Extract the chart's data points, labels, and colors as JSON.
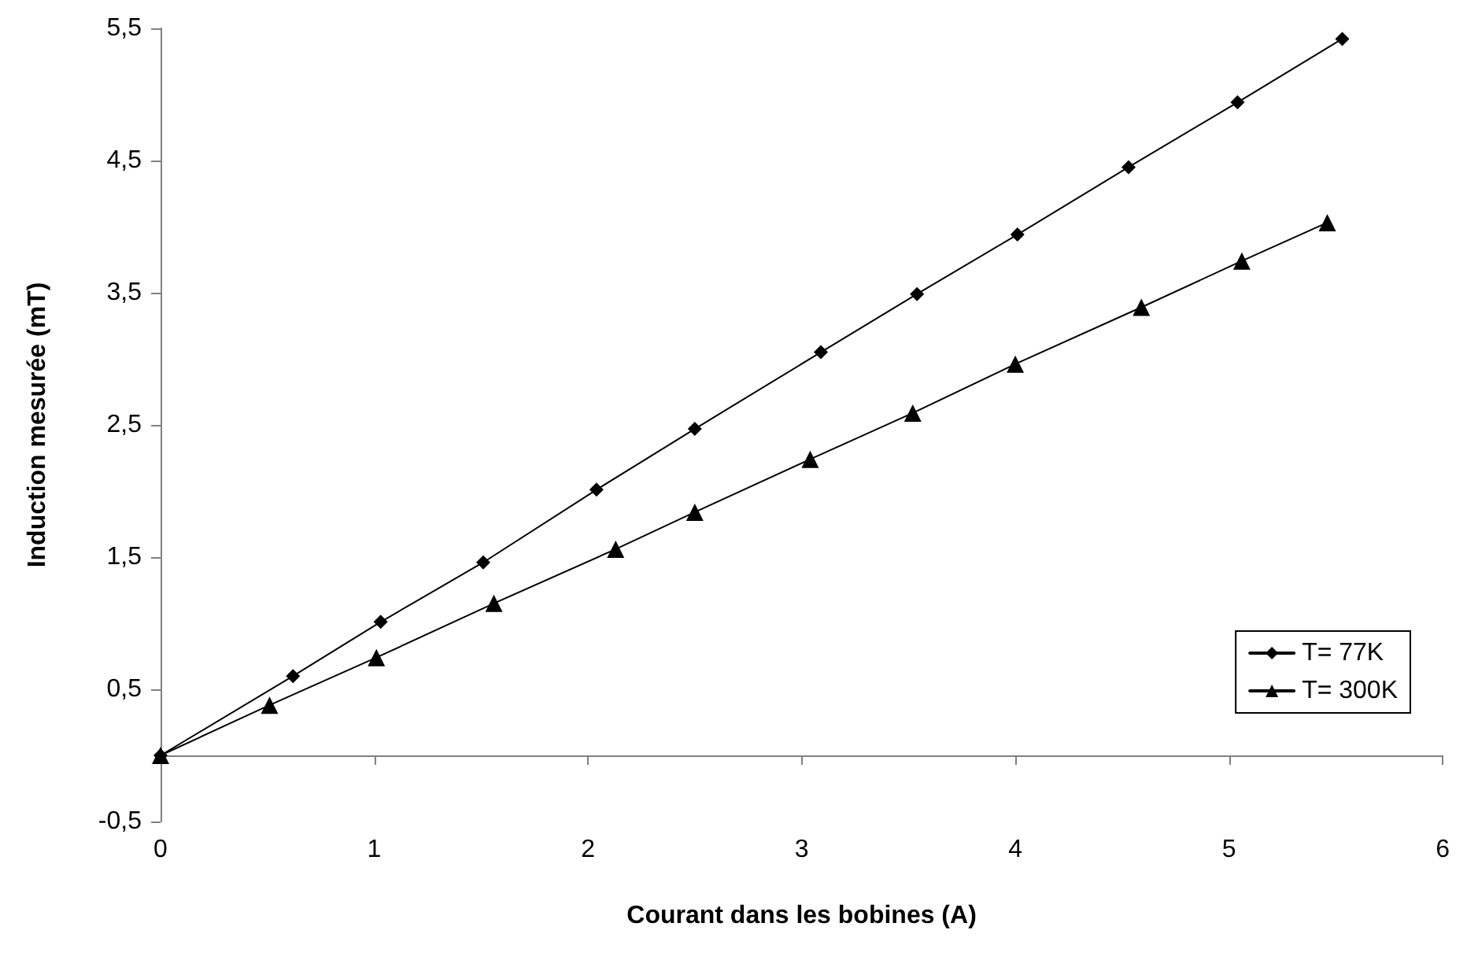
{
  "chart_data": {
    "type": "line",
    "xlabel": "Courant dans les bobines (A)",
    "ylabel": "Induction mesurée (mT)",
    "xlim": [
      0,
      6
    ],
    "xticks": [
      0,
      1,
      2,
      3,
      4,
      5,
      6
    ],
    "ylim": [
      -0.5,
      5.5
    ],
    "yticks": [
      {
        "value": -0.5,
        "label": "-0,5"
      },
      {
        "value": 0.5,
        "label": "0,5"
      },
      {
        "value": 1.5,
        "label": "1,5"
      },
      {
        "value": 2.5,
        "label": "2,5"
      },
      {
        "value": 3.5,
        "label": "3,5"
      },
      {
        "value": 4.5,
        "label": "4,5"
      },
      {
        "value": 5.5,
        "label": "5,5"
      }
    ],
    "grid": false,
    "legend": "right",
    "line_style": "solid",
    "series": [
      {
        "name": "T= 77K",
        "color": "#000000",
        "marker": "diamond",
        "x": [
          0,
          0.62,
          1.03,
          1.51,
          2.04,
          2.5,
          3.09,
          3.54,
          4.01,
          4.53,
          5.04,
          5.53
        ],
        "values": [
          0,
          0.6,
          1.01,
          1.46,
          2.01,
          2.47,
          3.05,
          3.49,
          3.94,
          4.45,
          4.94,
          5.42
        ]
      },
      {
        "name": "T= 300K",
        "color": "#000000",
        "marker": "triangle",
        "x": [
          0,
          0.51,
          1.01,
          1.56,
          2.13,
          2.5,
          3.04,
          3.52,
          4,
          4.59,
          5.06,
          5.46
        ],
        "values": [
          0,
          0.38,
          0.74,
          1.15,
          1.56,
          1.84,
          2.24,
          2.59,
          2.96,
          3.39,
          3.74,
          4.03
        ]
      }
    ]
  }
}
